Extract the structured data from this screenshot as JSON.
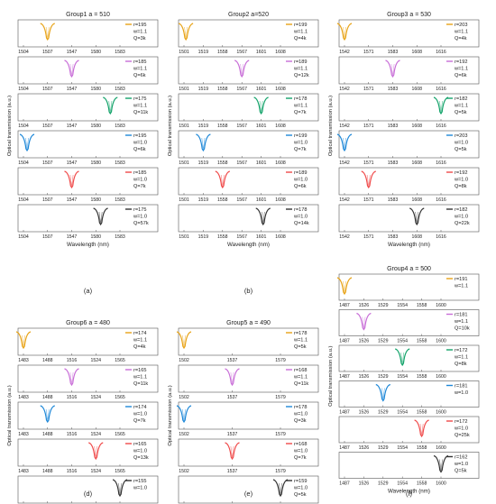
{
  "colors": {
    "c1": "#E8A317",
    "c2": "#C86DD7",
    "c3": "#13A36A",
    "c4": "#1E88D8",
    "c5": "#F04A4A",
    "c6": "#333333"
  },
  "chart_data": [
    {
      "type": "line",
      "title": "Group1 a = 510",
      "panel_letter": "(a)",
      "xlabel": "Wavelength (nm)",
      "ylabel": "Optical transmission (a.u.)",
      "xticks": [
        "1504",
        "1507",
        "1547",
        "1580",
        "1583"
      ],
      "series": [
        {
          "color": "c1",
          "dip": 1,
          "legend": [
            "r=195",
            "w=1.1",
            "Q=3k"
          ]
        },
        {
          "color": "c2",
          "dip": 2,
          "legend": [
            "r=185",
            "w=1.1",
            "Q=6k"
          ]
        },
        {
          "color": "c3",
          "dip": 3.6,
          "legend": [
            "r=175",
            "w=1.1",
            "Q=11k"
          ]
        },
        {
          "color": "c4",
          "dip": 0.15,
          "legend": [
            "r=195",
            "w=1.0",
            "Q=6k"
          ]
        },
        {
          "color": "c5",
          "dip": 2,
          "legend": [
            "r=185",
            "w=1.0",
            "Q=7k"
          ]
        },
        {
          "color": "c6",
          "dip": 3.2,
          "legend": [
            "r=175",
            "w=1.0",
            "Q=57k"
          ]
        }
      ]
    },
    {
      "type": "line",
      "title": "Group2 a=520",
      "panel_letter": "(b)",
      "xlabel": "Wavelength (nm)",
      "ylabel": "Optical transmission (a.u.)",
      "xticks": [
        "1501",
        "1519",
        "1558",
        "1567",
        "1601",
        "1608"
      ],
      "series": [
        {
          "color": "c1",
          "dip": 0.1,
          "legend": [
            "r=199",
            "w=1.1",
            "Q=4k"
          ]
        },
        {
          "color": "c2",
          "dip": 3,
          "legend": [
            "r=189",
            "w=1.1",
            "Q=12k"
          ]
        },
        {
          "color": "c3",
          "dip": 4,
          "legend": [
            "r=178",
            "w=1.1",
            "Q=7k"
          ]
        },
        {
          "color": "c4",
          "dip": 1,
          "legend": [
            "r=199",
            "w=1.0",
            "Q=7k"
          ]
        },
        {
          "color": "c5",
          "dip": 2,
          "legend": [
            "r=189",
            "w=1.0",
            "Q=6k"
          ]
        },
        {
          "color": "c6",
          "dip": 4.1,
          "legend": [
            "r=178",
            "w=1.0",
            "Q=14k"
          ]
        }
      ]
    },
    {
      "type": "line",
      "title": "Group3 a = 530",
      "panel_letter": "(c)",
      "xlabel": "Wavelength (nm)",
      "ylabel": "Optical transmission (a.u.)",
      "xticks": [
        "1542",
        "1571",
        "1583",
        "1608",
        "1616"
      ],
      "series": [
        {
          "color": "c1",
          "dip": 0,
          "legend": [
            "r=203",
            "w=1.1",
            "Q=4k"
          ]
        },
        {
          "color": "c2",
          "dip": 2,
          "legend": [
            "r=192",
            "w=1.1",
            "Q=6k"
          ]
        },
        {
          "color": "c3",
          "dip": 4,
          "legend": [
            "r=182",
            "w=1.1",
            "Q=5k"
          ]
        },
        {
          "color": "c4",
          "dip": 0,
          "legend": [
            "r=203",
            "w=1.0",
            "Q=5k"
          ]
        },
        {
          "color": "c5",
          "dip": 1,
          "legend": [
            "r=192",
            "w=1.0",
            "Q=8k"
          ]
        },
        {
          "color": "c6",
          "dip": 3,
          "legend": [
            "r=182",
            "w=1.0",
            "Q=22k"
          ]
        }
      ]
    },
    {
      "type": "line",
      "title": "Group6 a = 480",
      "panel_letter": "(d)",
      "xlabel": "Wavelength (nm)",
      "ylabel": "Optical transmission (a.u.)",
      "xticks": [
        "1483",
        "1488",
        "1516",
        "1524",
        "1565"
      ],
      "series": [
        {
          "color": "c1",
          "dip": 0,
          "legend": [
            "r=174",
            "w=1.1",
            "Q=4k"
          ]
        },
        {
          "color": "c2",
          "dip": 2,
          "legend": [
            "r=165",
            "w=1.1",
            "Q=11k"
          ]
        },
        {
          "color": "c4",
          "dip": 1,
          "legend": [
            "r=174",
            "w=1.0",
            "Q=7k"
          ]
        },
        {
          "color": "c5",
          "dip": 3,
          "legend": [
            "r=165",
            "w=1.0",
            "Q=13k"
          ]
        },
        {
          "color": "c6",
          "dip": 4,
          "legend": [
            "r=155",
            "w=1.0"
          ]
        }
      ]
    },
    {
      "type": "line",
      "title": "Group5 a = 490",
      "panel_letter": "(e)",
      "xlabel": "Wavelength (nm)",
      "ylabel": "Optical transmission (a.u.)",
      "xticks": [
        "1502",
        "1537",
        "1579"
      ],
      "series": [
        {
          "color": "c1",
          "dip": 0,
          "legend": [
            "r=178",
            "w=1.1",
            "Q=5k"
          ]
        },
        {
          "color": "c2",
          "dip": 1,
          "legend": [
            "r=168",
            "w=1.1",
            "Q=11k"
          ]
        },
        {
          "color": "c4",
          "dip": 0,
          "legend": [
            "r=178",
            "w=1.0",
            "Q=3k"
          ]
        },
        {
          "color": "c5",
          "dip": 1,
          "legend": [
            "r=168",
            "w=1.0",
            "Q=7k"
          ]
        },
        {
          "color": "c6",
          "dip": 2,
          "legend": [
            "r=159",
            "w=1.0",
            "Q=5k"
          ]
        }
      ]
    },
    {
      "type": "line",
      "title": "Group4 a = 500",
      "panel_letter": "(f)",
      "xlabel": "Wavelength (nm)",
      "ylabel": "Optical transmission (a.u.)",
      "xticks": [
        "1487",
        "1526",
        "1529",
        "1554",
        "1558",
        "1600"
      ],
      "series": [
        {
          "color": "c1",
          "dip": 0,
          "legend": [
            "r=191",
            "w=1.1"
          ]
        },
        {
          "color": "c2",
          "dip": 1,
          "legend": [
            "r=181",
            "w=1.1",
            "Q=10k"
          ]
        },
        {
          "color": "c3",
          "dip": 3,
          "legend": [
            "r=172",
            "w=1.1",
            "Q=8k"
          ]
        },
        {
          "color": "c4",
          "dip": 2,
          "legend": [
            "r=181",
            "w=1.0"
          ]
        },
        {
          "color": "c5",
          "dip": 4,
          "legend": [
            "r=172",
            "w=1.0",
            "Q=25k"
          ]
        },
        {
          "color": "c6",
          "dip": 5,
          "legend": [
            "r=162",
            "w=1.0",
            "Q=5k"
          ]
        }
      ]
    }
  ]
}
